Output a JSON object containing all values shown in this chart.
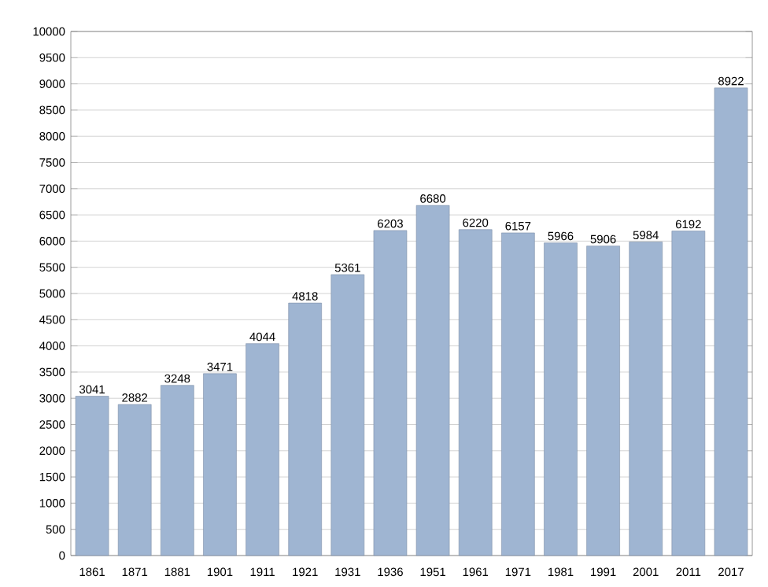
{
  "chart_data": {
    "type": "bar",
    "categories": [
      "1861",
      "1871",
      "1881",
      "1901",
      "1911",
      "1921",
      "1931",
      "1936",
      "1951",
      "1961",
      "1971",
      "1981",
      "1991",
      "2001",
      "2011",
      "2017"
    ],
    "values": [
      3041,
      2882,
      3248,
      3471,
      4044,
      4818,
      5361,
      6203,
      6680,
      6220,
      6157,
      5966,
      5906,
      5984,
      6192,
      8922
    ],
    "color": "#9fb5d2",
    "data_labels": true,
    "grid": "y",
    "ylim": [
      0,
      10000
    ],
    "yticks": [
      0,
      500,
      1000,
      1500,
      2000,
      2500,
      3000,
      3500,
      4000,
      4500,
      5000,
      5500,
      6000,
      6500,
      7000,
      7500,
      8000,
      8500,
      9000,
      9500,
      10000
    ]
  }
}
